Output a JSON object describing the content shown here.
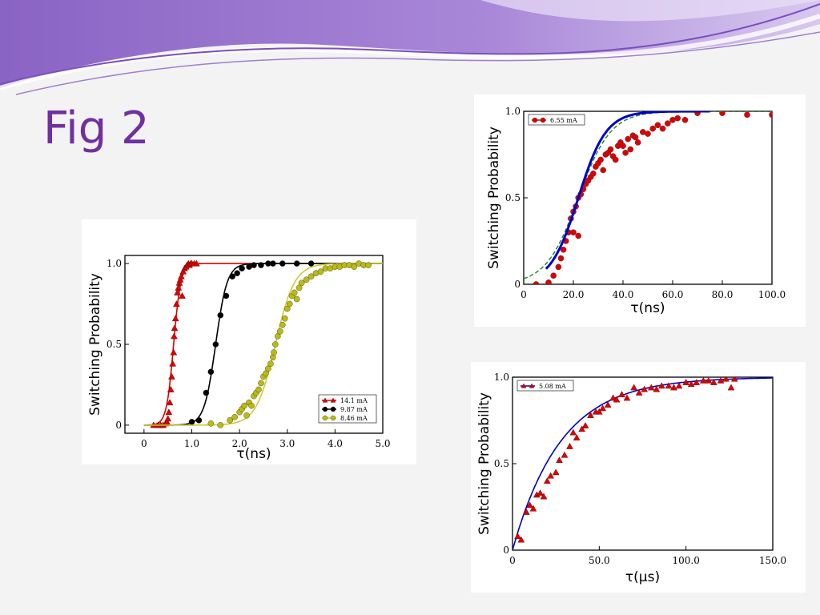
{
  "slide": {
    "title": "Fig 2"
  },
  "chart_data": [
    {
      "type": "scatter",
      "xlabel": "τ(ns)",
      "ylabel": "Switching Probability",
      "xlim": [
        -0.4,
        5.0
      ],
      "ylim": [
        -0.05,
        1.05
      ],
      "xticks": [
        "0",
        "1.0",
        "2.0",
        "3.0",
        "4.0",
        "5.0"
      ],
      "xtick_values": [
        0,
        1,
        2,
        3,
        4,
        5
      ],
      "yticks": [
        "0",
        "0.5",
        "1.0"
      ],
      "ytick_values": [
        0,
        0.5,
        1
      ],
      "legend_position": "bottom-right",
      "series": [
        {
          "name": "14.1 mA",
          "color": "#dd0000",
          "marker": "triangle",
          "fit_color": "#dd0000",
          "fit": {
            "x0": 0.62,
            "w": 0.075,
            "xmin": 0.0,
            "xmax": 5.0
          },
          "points": [
            [
              0.2,
              0
            ],
            [
              0.3,
              0
            ],
            [
              0.35,
              0
            ],
            [
              0.4,
              0
            ],
            [
              0.45,
              0.01
            ],
            [
              0.48,
              0.02
            ],
            [
              0.5,
              0.04
            ],
            [
              0.52,
              0.08
            ],
            [
              0.54,
              0.14
            ],
            [
              0.56,
              0.22
            ],
            [
              0.58,
              0.3
            ],
            [
              0.6,
              0.38
            ],
            [
              0.62,
              0.45
            ],
            [
              0.63,
              0.55
            ],
            [
              0.64,
              0.6
            ],
            [
              0.66,
              0.66
            ],
            [
              0.68,
              0.75
            ],
            [
              0.7,
              0.82
            ],
            [
              0.72,
              0.85
            ],
            [
              0.74,
              0.88
            ],
            [
              0.76,
              0.9
            ],
            [
              0.78,
              0.92
            ],
            [
              0.8,
              0.8
            ],
            [
              0.82,
              0.95
            ],
            [
              0.85,
              0.97
            ],
            [
              0.88,
              0.98
            ],
            [
              0.9,
              0.99
            ],
            [
              0.93,
              1.0
            ],
            [
              0.95,
              0.99
            ],
            [
              0.98,
              1.0
            ],
            [
              1.0,
              1.0
            ],
            [
              1.05,
              1.0
            ],
            [
              1.1,
              1.0
            ]
          ]
        },
        {
          "name": "9.87 mA",
          "color": "#000000",
          "marker": "circle",
          "fit_color": "#000000",
          "fit": {
            "x0": 1.5,
            "w": 0.12,
            "xmin": 0.0,
            "xmax": 5.0
          },
          "points": [
            [
              1.0,
              0.02
            ],
            [
              1.15,
              0.03
            ],
            [
              1.3,
              0.2
            ],
            [
              1.4,
              0.33
            ],
            [
              1.5,
              0.5
            ],
            [
              1.6,
              0.68
            ],
            [
              1.72,
              0.8
            ],
            [
              1.85,
              0.92
            ],
            [
              1.95,
              0.94
            ],
            [
              2.05,
              0.97
            ],
            [
              2.2,
              0.98
            ],
            [
              2.3,
              0.99
            ],
            [
              2.45,
              0.99
            ],
            [
              2.6,
              1.0
            ],
            [
              2.7,
              1.0
            ],
            [
              2.9,
              1.0
            ],
            [
              3.2,
              1.0
            ],
            [
              3.5,
              1.0
            ]
          ]
        },
        {
          "name": "8.46 mA",
          "color": "#bbbb11",
          "marker": "circle",
          "fit_color": "#cccc33",
          "fit": {
            "x0": 2.75,
            "w": 0.2,
            "xmin": 0.0,
            "xmax": 5.0
          },
          "points": [
            [
              1.4,
              0.01
            ],
            [
              1.6,
              0.0
            ],
            [
              1.8,
              0.03
            ],
            [
              1.9,
              0.05
            ],
            [
              2.0,
              0.08
            ],
            [
              2.05,
              0.1
            ],
            [
              2.1,
              0.12
            ],
            [
              2.15,
              0.06
            ],
            [
              2.2,
              0.14
            ],
            [
              2.25,
              0.12
            ],
            [
              2.3,
              0.18
            ],
            [
              2.35,
              0.2
            ],
            [
              2.4,
              0.22
            ],
            [
              2.45,
              0.26
            ],
            [
              2.5,
              0.3
            ],
            [
              2.55,
              0.32
            ],
            [
              2.6,
              0.35
            ],
            [
              2.65,
              0.38
            ],
            [
              2.7,
              0.42
            ],
            [
              2.72,
              0.45
            ],
            [
              2.75,
              0.5
            ],
            [
              2.8,
              0.55
            ],
            [
              2.85,
              0.58
            ],
            [
              2.9,
              0.62
            ],
            [
              2.95,
              0.66
            ],
            [
              3.0,
              0.72
            ],
            [
              3.05,
              0.75
            ],
            [
              3.1,
              0.8
            ],
            [
              3.15,
              0.82
            ],
            [
              3.2,
              0.78
            ],
            [
              3.25,
              0.85
            ],
            [
              3.3,
              0.88
            ],
            [
              3.4,
              0.9
            ],
            [
              3.5,
              0.92
            ],
            [
              3.6,
              0.94
            ],
            [
              3.7,
              0.95
            ],
            [
              3.8,
              0.97
            ],
            [
              3.9,
              0.97
            ],
            [
              4.0,
              0.98
            ],
            [
              4.1,
              0.98
            ],
            [
              4.2,
              0.99
            ],
            [
              4.3,
              0.99
            ],
            [
              4.4,
              0.98
            ],
            [
              4.5,
              1.0
            ],
            [
              4.6,
              0.99
            ],
            [
              4.7,
              0.99
            ]
          ]
        }
      ]
    },
    {
      "type": "scatter",
      "xlabel": "τ(ns)",
      "ylabel": "Switching Probability",
      "xlim": [
        0,
        100
      ],
      "ylim": [
        0,
        1.0
      ],
      "xticks": [
        "0",
        "20.0",
        "40.0",
        "60.0",
        "80.0",
        "100.0"
      ],
      "xtick_values": [
        0,
        20,
        40,
        60,
        80,
        100
      ],
      "yticks": [
        "0",
        "0.5",
        "1.0"
      ],
      "ytick_values": [
        0,
        0.5,
        1
      ],
      "legend_position": "top-left",
      "series": [
        {
          "name": "6.55 mA",
          "color": "#dd0000",
          "marker": "circle",
          "points": [
            [
              5,
              0.0
            ],
            [
              10,
              0.01
            ],
            [
              12,
              0.05
            ],
            [
              14,
              0.1
            ],
            [
              15,
              0.15
            ],
            [
              16,
              0.2
            ],
            [
              17,
              0.25
            ],
            [
              18,
              0.3
            ],
            [
              19,
              0.38
            ],
            [
              20,
              0.42
            ],
            [
              20,
              0.3
            ],
            [
              21,
              0.45
            ],
            [
              22,
              0.5
            ],
            [
              22,
              0.28
            ],
            [
              23,
              0.52
            ],
            [
              24,
              0.55
            ],
            [
              25,
              0.58
            ],
            [
              26,
              0.6
            ],
            [
              27,
              0.62
            ],
            [
              28,
              0.64
            ],
            [
              29,
              0.68
            ],
            [
              30,
              0.7
            ],
            [
              31,
              0.72
            ],
            [
              32,
              0.66
            ],
            [
              33,
              0.75
            ],
            [
              34,
              0.76
            ],
            [
              35,
              0.78
            ],
            [
              36,
              0.74
            ],
            [
              37,
              0.72
            ],
            [
              38,
              0.8
            ],
            [
              39,
              0.82
            ],
            [
              40,
              0.8
            ],
            [
              41,
              0.76
            ],
            [
              42,
              0.84
            ],
            [
              43,
              0.78
            ],
            [
              44,
              0.86
            ],
            [
              45,
              0.85
            ],
            [
              46,
              0.82
            ],
            [
              48,
              0.88
            ],
            [
              50,
              0.87
            ],
            [
              52,
              0.9
            ],
            [
              54,
              0.92
            ],
            [
              56,
              0.9
            ],
            [
              58,
              0.93
            ],
            [
              60,
              0.95
            ],
            [
              62,
              0.96
            ],
            [
              65,
              0.95
            ],
            [
              70,
              0.99
            ],
            [
              80,
              0.99
            ],
            [
              90,
              0.98
            ],
            [
              100,
              0.98
            ]
          ]
        }
      ],
      "curves": [
        {
          "color": "#22882a",
          "dash": true,
          "x0": 22,
          "w": 6.5,
          "xmin": 0,
          "xmax": 100
        },
        {
          "color": "#0000cc",
          "dash": false,
          "x0": 22,
          "w": 5.6,
          "xmin": 9,
          "xmax": 75,
          "width": 3
        }
      ]
    },
    {
      "type": "scatter",
      "xlabel": "τ(μs)",
      "ylabel": "Switching Probability",
      "xlim": [
        0,
        150
      ],
      "ylim": [
        0,
        1.0
      ],
      "xticks": [
        "0",
        "50.0",
        "100.0",
        "150.0"
      ],
      "xtick_values": [
        0,
        50,
        100,
        150
      ],
      "yticks": [
        "0",
        "0.5",
        "1.0"
      ],
      "ytick_values": [
        0,
        0.5,
        1
      ],
      "legend_position": "top-left",
      "series": [
        {
          "name": "5.08 mA",
          "color": "#dd0000",
          "marker": "triangle",
          "fit_color": "#0000cc",
          "exp_fit": {
            "tau": 28,
            "xmin": 0,
            "xmax": 150
          },
          "points": [
            [
              3,
              0.08
            ],
            [
              5,
              0.06
            ],
            [
              8,
              0.22
            ],
            [
              10,
              0.26
            ],
            [
              12,
              0.24
            ],
            [
              14,
              0.32
            ],
            [
              16,
              0.33
            ],
            [
              18,
              0.31
            ],
            [
              20,
              0.4
            ],
            [
              22,
              0.43
            ],
            [
              25,
              0.45
            ],
            [
              27,
              0.52
            ],
            [
              30,
              0.55
            ],
            [
              33,
              0.6
            ],
            [
              35,
              0.68
            ],
            [
              37,
              0.65
            ],
            [
              40,
              0.7
            ],
            [
              42,
              0.72
            ],
            [
              45,
              0.78
            ],
            [
              48,
              0.8
            ],
            [
              50,
              0.8
            ],
            [
              52,
              0.82
            ],
            [
              55,
              0.84
            ],
            [
              58,
              0.88
            ],
            [
              60,
              0.87
            ],
            [
              63,
              0.9
            ],
            [
              66,
              0.88
            ],
            [
              70,
              0.94
            ],
            [
              73,
              0.91
            ],
            [
              76,
              0.93
            ],
            [
              80,
              0.94
            ],
            [
              83,
              0.93
            ],
            [
              86,
              0.95
            ],
            [
              90,
              0.95
            ],
            [
              93,
              0.94
            ],
            [
              96,
              0.95
            ],
            [
              100,
              0.97
            ],
            [
              103,
              0.96
            ],
            [
              106,
              0.97
            ],
            [
              110,
              0.98
            ],
            [
              113,
              0.98
            ],
            [
              116,
              0.97
            ],
            [
              120,
              0.98
            ],
            [
              123,
              0.99
            ],
            [
              126,
              0.94
            ],
            [
              128,
              0.99
            ]
          ]
        }
      ]
    }
  ]
}
